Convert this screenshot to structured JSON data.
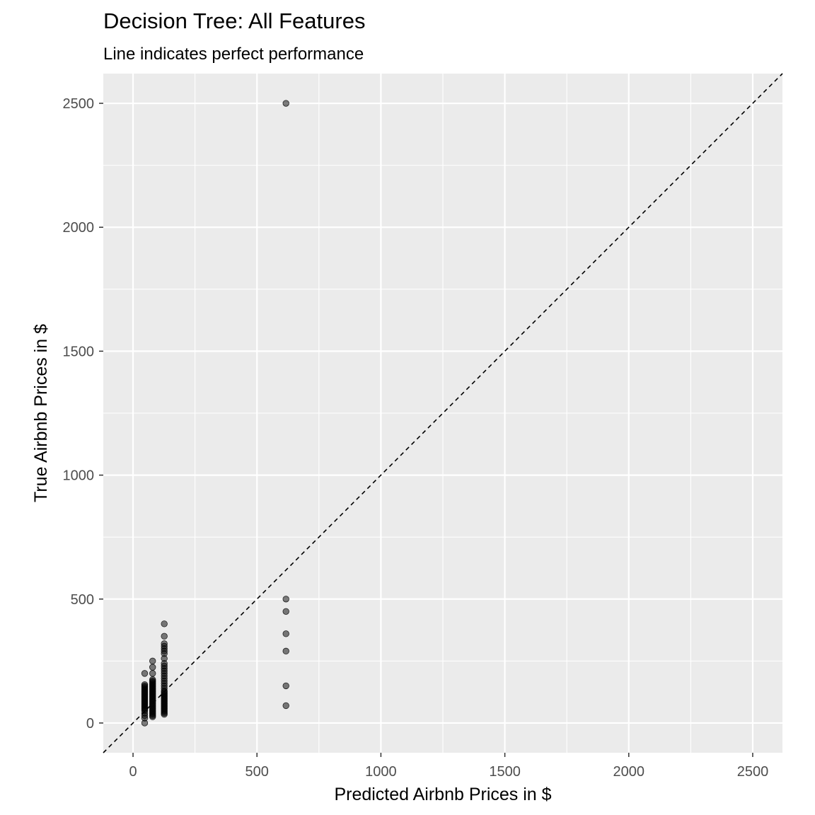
{
  "chart_data": {
    "type": "scatter",
    "title": "Decision Tree: All Features",
    "subtitle": "Line indicates perfect performance",
    "xlabel": "Predicted Airbnb Prices in $",
    "ylabel": "True Airbnb Prices in $",
    "xlim": [
      -120,
      2620
    ],
    "ylim": [
      -120,
      2620
    ],
    "x_ticks": [
      0,
      500,
      1000,
      1500,
      2000,
      2500
    ],
    "y_ticks": [
      0,
      500,
      1000,
      1500,
      2000,
      2500
    ],
    "x_tick_labels": [
      "0",
      "500",
      "1000",
      "1500",
      "2000",
      "2500"
    ],
    "y_tick_labels": [
      "0",
      "500",
      "1000",
      "1500",
      "2000",
      "2500"
    ],
    "grid": true,
    "reference_line": {
      "slope": 1,
      "intercept": 0,
      "style": "dashed",
      "color": "#000000"
    },
    "colors": {
      "panel_background": "#ebebeb",
      "grid": "#ffffff",
      "point_fill": "#000000",
      "point_alpha": 0.5,
      "tick_text": "#4d4d4d"
    },
    "series": [
      {
        "points": [
          [
            47,
            0
          ],
          [
            47,
            20
          ],
          [
            47,
            30
          ],
          [
            47,
            40
          ],
          [
            47,
            50
          ],
          [
            47,
            55
          ],
          [
            47,
            60
          ],
          [
            47,
            65
          ],
          [
            47,
            70
          ],
          [
            47,
            75
          ],
          [
            47,
            80
          ],
          [
            47,
            85
          ],
          [
            47,
            90
          ],
          [
            47,
            95
          ],
          [
            47,
            100
          ],
          [
            47,
            105
          ],
          [
            47,
            110
          ],
          [
            47,
            115
          ],
          [
            47,
            120
          ],
          [
            47,
            125
          ],
          [
            47,
            130
          ],
          [
            47,
            135
          ],
          [
            47,
            140
          ],
          [
            47,
            145
          ],
          [
            47,
            150
          ],
          [
            47,
            155
          ],
          [
            47,
            200
          ],
          [
            79,
            25
          ],
          [
            79,
            30
          ],
          [
            79,
            35
          ],
          [
            79,
            40
          ],
          [
            79,
            45
          ],
          [
            79,
            50
          ],
          [
            79,
            55
          ],
          [
            79,
            60
          ],
          [
            79,
            65
          ],
          [
            79,
            70
          ],
          [
            79,
            75
          ],
          [
            79,
            80
          ],
          [
            79,
            85
          ],
          [
            79,
            90
          ],
          [
            79,
            95
          ],
          [
            79,
            100
          ],
          [
            79,
            105
          ],
          [
            79,
            110
          ],
          [
            79,
            115
          ],
          [
            79,
            120
          ],
          [
            79,
            125
          ],
          [
            79,
            130
          ],
          [
            79,
            135
          ],
          [
            79,
            140
          ],
          [
            79,
            145
          ],
          [
            79,
            150
          ],
          [
            79,
            155
          ],
          [
            79,
            160
          ],
          [
            79,
            165
          ],
          [
            79,
            170
          ],
          [
            79,
            175
          ],
          [
            79,
            200
          ],
          [
            79,
            225
          ],
          [
            79,
            250
          ],
          [
            126,
            35
          ],
          [
            126,
            40
          ],
          [
            126,
            45
          ],
          [
            126,
            50
          ],
          [
            126,
            55
          ],
          [
            126,
            60
          ],
          [
            126,
            65
          ],
          [
            126,
            70
          ],
          [
            126,
            75
          ],
          [
            126,
            80
          ],
          [
            126,
            85
          ],
          [
            126,
            90
          ],
          [
            126,
            95
          ],
          [
            126,
            100
          ],
          [
            126,
            105
          ],
          [
            126,
            110
          ],
          [
            126,
            115
          ],
          [
            126,
            120
          ],
          [
            126,
            125
          ],
          [
            126,
            130
          ],
          [
            126,
            140
          ],
          [
            126,
            150
          ],
          [
            126,
            160
          ],
          [
            126,
            170
          ],
          [
            126,
            180
          ],
          [
            126,
            190
          ],
          [
            126,
            200
          ],
          [
            126,
            210
          ],
          [
            126,
            220
          ],
          [
            126,
            230
          ],
          [
            126,
            240
          ],
          [
            126,
            260
          ],
          [
            126,
            280
          ],
          [
            126,
            290
          ],
          [
            126,
            300
          ],
          [
            126,
            310
          ],
          [
            126,
            320
          ],
          [
            126,
            350
          ],
          [
            126,
            400
          ],
          [
            617,
            70
          ],
          [
            617,
            150
          ],
          [
            617,
            290
          ],
          [
            617,
            360
          ],
          [
            617,
            450
          ],
          [
            617,
            500
          ],
          [
            617,
            2500
          ]
        ]
      }
    ]
  }
}
